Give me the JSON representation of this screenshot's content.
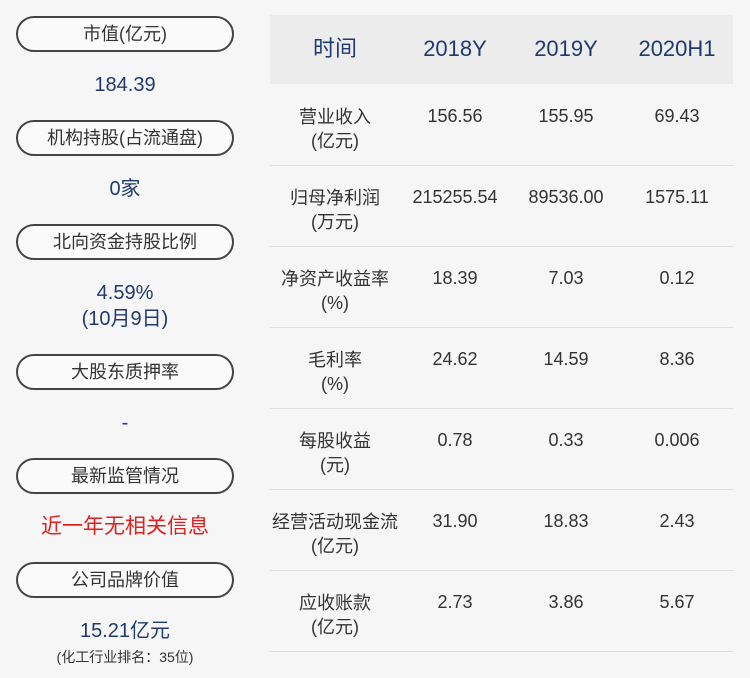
{
  "left": {
    "items": [
      {
        "label": "市值(亿元)",
        "value": "184.39"
      },
      {
        "label": "机构持股(占流通盘)",
        "value": "0家"
      },
      {
        "label": "北向资金持股比例",
        "value": "4.59%",
        "note": "(10月9日)"
      },
      {
        "label": "大股东质押率",
        "value": "-"
      },
      {
        "label": "最新监管情况",
        "value": "近一年无相关信息"
      },
      {
        "label": "公司品牌价值",
        "value": "15.21亿元",
        "note": "(化工行业排名：35位)"
      }
    ]
  },
  "table": {
    "header": [
      "时间",
      "2018Y",
      "2019Y",
      "2020H1"
    ],
    "rows": [
      {
        "label": "营业收入",
        "unit": "(亿元)",
        "values": [
          "156.56",
          "155.95",
          "69.43"
        ]
      },
      {
        "label": "归母净利润",
        "unit": "(万元)",
        "values": [
          "215255.54",
          "89536.00",
          "1575.11"
        ]
      },
      {
        "label": "净资产收益率",
        "unit": "(%)",
        "values": [
          "18.39",
          "7.03",
          "0.12"
        ]
      },
      {
        "label": "毛利率",
        "unit": "(%)",
        "values": [
          "24.62",
          "14.59",
          "8.36"
        ]
      },
      {
        "label": "每股收益",
        "unit": "(元)",
        "values": [
          "0.78",
          "0.33",
          "0.006"
        ]
      },
      {
        "label": "经营活动现金流",
        "unit": "(亿元)",
        "values": [
          "31.90",
          "18.83",
          "2.43"
        ]
      },
      {
        "label": "应收账款",
        "unit": "(亿元)",
        "values": [
          "2.73",
          "3.86",
          "5.67"
        ]
      }
    ]
  }
}
